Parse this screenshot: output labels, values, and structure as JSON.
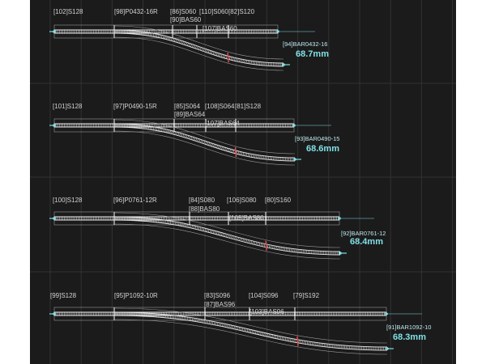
{
  "theme": {
    "background": "#1b1b1b",
    "grid": "#323232",
    "track": "#e6e6e6",
    "accent": "#7fe0e6",
    "marker": "#e04848"
  },
  "diagrams": [
    {
      "pieces": [
        "[102]S128",
        "[98]P0432-16R",
        "[86]S060",
        "[110]S060",
        "[82]S120",
        "[90]BAS60",
        "[107]BAS60"
      ],
      "measure_id": "[94]BAR0432-16",
      "measure_value": "68.7mm"
    },
    {
      "pieces": [
        "[101]S128",
        "[97]P0490-15R",
        "[85]S064",
        "[108]S064",
        "[81]S128",
        "[89]BAS64",
        "[107]BAS64"
      ],
      "measure_id": "[93]BAR0490-15",
      "measure_value": "68.6mm"
    },
    {
      "pieces": [
        "[100]S128",
        "[96]P0761-12R",
        "[84]S080",
        "[106]S080",
        "[80]S160",
        "[88]BAS80",
        "[105]BAS80"
      ],
      "measure_id": "[92]BAR0761-12",
      "measure_value": "68.4mm"
    },
    {
      "pieces": [
        "[99]S128",
        "[95]P1092-10R",
        "[83]S096",
        "[104]S096",
        "[79]S192",
        "[87]BAS96",
        "[103]BAS96"
      ],
      "measure_id": "[91]BAR1092-10",
      "measure_value": "68.3mm"
    }
  ]
}
